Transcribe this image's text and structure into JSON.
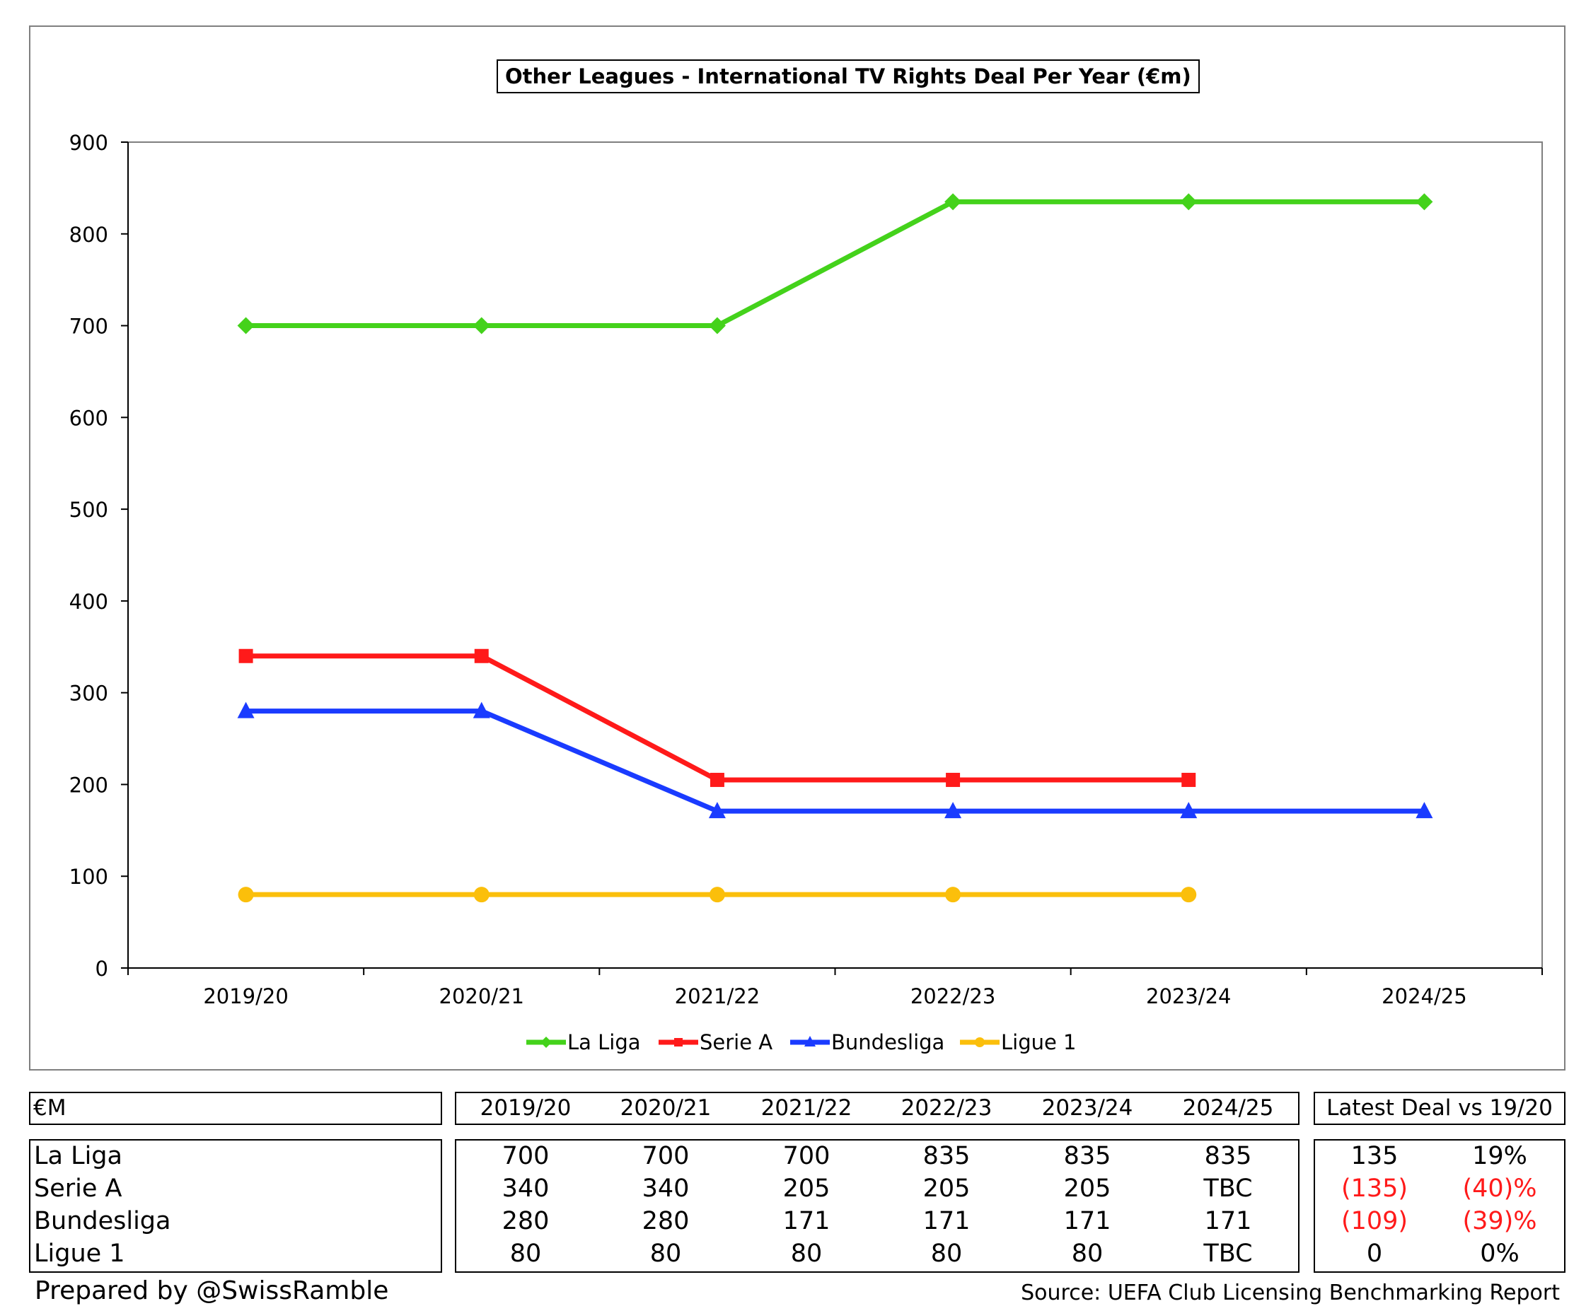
{
  "chart_data": {
    "type": "line",
    "title": "Other Leagues - International TV Rights Deal Per Year (€m)",
    "categories": [
      "2019/20",
      "2020/21",
      "2021/22",
      "2022/23",
      "2023/24",
      "2024/25"
    ],
    "ylim": [
      0,
      900
    ],
    "yticks": [
      "0",
      "100",
      "200",
      "300",
      "400",
      "500",
      "600",
      "700",
      "800",
      "900"
    ],
    "grid": false,
    "legend_position": "bottom",
    "series": [
      {
        "name": "La Liga",
        "color": "#44d21b",
        "marker": "diamond",
        "values": [
          700,
          700,
          700,
          835,
          835,
          835
        ]
      },
      {
        "name": "Serie A",
        "color": "#ff1a1a",
        "marker": "square",
        "values": [
          340,
          340,
          205,
          205,
          205,
          null
        ]
      },
      {
        "name": "Bundesliga",
        "color": "#1a3bff",
        "marker": "triangle",
        "values": [
          280,
          280,
          171,
          171,
          171,
          171
        ]
      },
      {
        "name": "Ligue 1",
        "color": "#fbbf0b",
        "marker": "circle",
        "values": [
          80,
          80,
          80,
          80,
          80,
          null
        ]
      }
    ]
  },
  "table": {
    "corner_label": "€M",
    "columns": [
      "2019/20",
      "2020/21",
      "2021/22",
      "2022/23",
      "2023/24",
      "2024/25"
    ],
    "change_header": "Latest Deal vs 19/20",
    "rows": [
      {
        "league": "La Liga",
        "values": [
          "700",
          "700",
          "700",
          "835",
          "835",
          "835"
        ],
        "change": "135",
        "change_pct": "19%",
        "negative": false
      },
      {
        "league": "Serie A",
        "values": [
          "340",
          "340",
          "205",
          "205",
          "205",
          "TBC"
        ],
        "change": "(135)",
        "change_pct": "(40)%",
        "negative": true
      },
      {
        "league": "Bundesliga",
        "values": [
          "280",
          "280",
          "171",
          "171",
          "171",
          "171"
        ],
        "change": "(109)",
        "change_pct": "(39)%",
        "negative": true
      },
      {
        "league": "Ligue 1",
        "values": [
          "80",
          "80",
          "80",
          "80",
          "80",
          "TBC"
        ],
        "change": "0",
        "change_pct": "0%",
        "negative": false
      }
    ]
  },
  "footer": {
    "prepared_by": "Prepared by @SwissRamble",
    "source": "Source: UEFA Club Licensing Benchmarking Report"
  }
}
